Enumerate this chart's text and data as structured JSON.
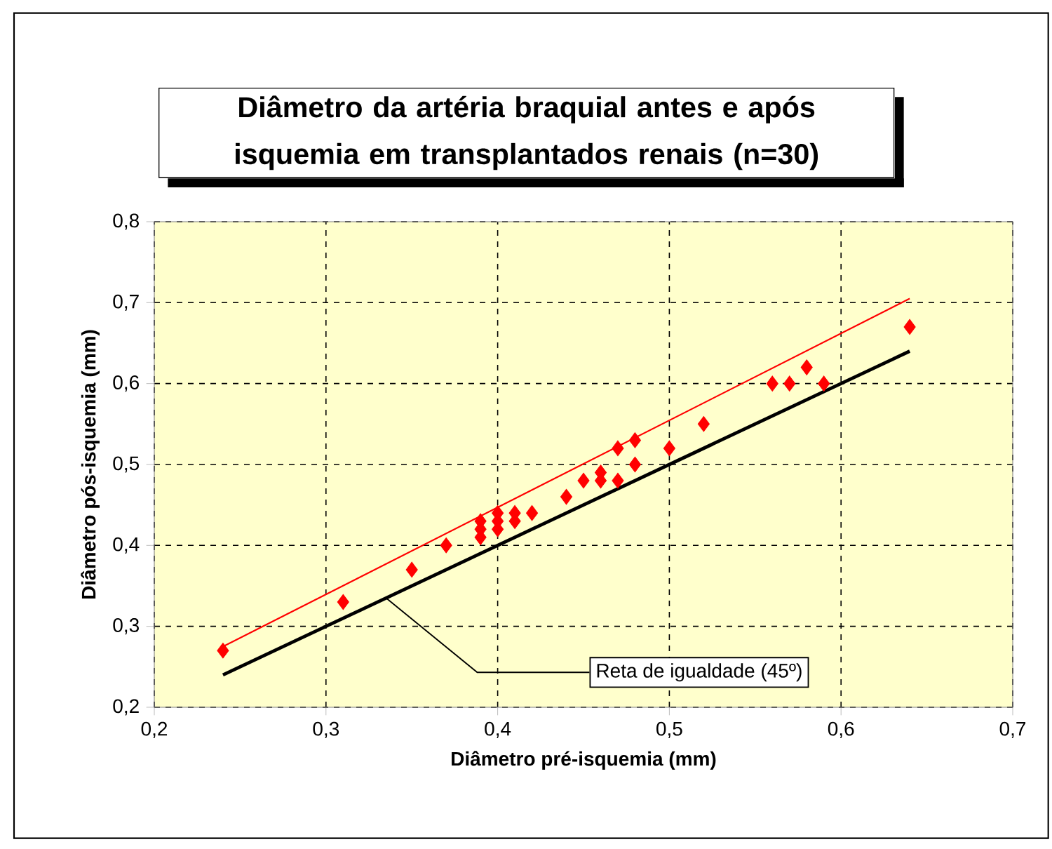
{
  "chart_data": {
    "type": "scatter",
    "title": "Diâmetro da artéria braquial antes e após isquemia em transplantados renais (n=30)",
    "xlabel": "Diâmetro pré-isquemia (mm)",
    "ylabel": "Diâmetro pós-isquemia (mm)",
    "xlim": [
      0.2,
      0.7
    ],
    "ylim": [
      0.2,
      0.8
    ],
    "xticks": [
      {
        "value": 0.2,
        "label": "0,2"
      },
      {
        "value": 0.3,
        "label": "0,3"
      },
      {
        "value": 0.4,
        "label": "0,4"
      },
      {
        "value": 0.5,
        "label": "0,5"
      },
      {
        "value": 0.6,
        "label": "0,6"
      },
      {
        "value": 0.7,
        "label": "0,7"
      }
    ],
    "yticks": [
      {
        "value": 0.2,
        "label": "0,2"
      },
      {
        "value": 0.3,
        "label": "0,3"
      },
      {
        "value": 0.4,
        "label": "0,4"
      },
      {
        "value": 0.5,
        "label": "0,5"
      },
      {
        "value": 0.6,
        "label": "0,6"
      },
      {
        "value": 0.7,
        "label": "0,7"
      },
      {
        "value": 0.8,
        "label": "0,8"
      }
    ],
    "grid": true,
    "series": [
      {
        "marker": "diamond",
        "color": "#ff0000",
        "x": [
          0.24,
          0.31,
          0.35,
          0.37,
          0.39,
          0.39,
          0.39,
          0.4,
          0.4,
          0.4,
          0.41,
          0.41,
          0.42,
          0.44,
          0.45,
          0.46,
          0.46,
          0.47,
          0.47,
          0.48,
          0.48,
          0.5,
          0.52,
          0.56,
          0.57,
          0.58,
          0.59,
          0.64
        ],
        "values": [
          0.27,
          0.33,
          0.37,
          0.4,
          0.41,
          0.42,
          0.43,
          0.42,
          0.43,
          0.44,
          0.43,
          0.44,
          0.44,
          0.46,
          0.48,
          0.48,
          0.49,
          0.48,
          0.52,
          0.5,
          0.53,
          0.52,
          0.55,
          0.6,
          0.6,
          0.62,
          0.6,
          0.67
        ]
      },
      {
        "type": "line",
        "marker": "none",
        "color": "#ff0000",
        "x": [
          0.24,
          0.64
        ],
        "values": [
          0.275,
          0.705
        ]
      },
      {
        "type": "line",
        "marker": "none",
        "color": "#000000",
        "x": [
          0.24,
          0.64
        ],
        "values": [
          0.24,
          0.64
        ]
      }
    ],
    "annotations": [
      {
        "text": "Reta de igualdade (45º)",
        "x": 0.335,
        "y": 0.335
      }
    ]
  }
}
